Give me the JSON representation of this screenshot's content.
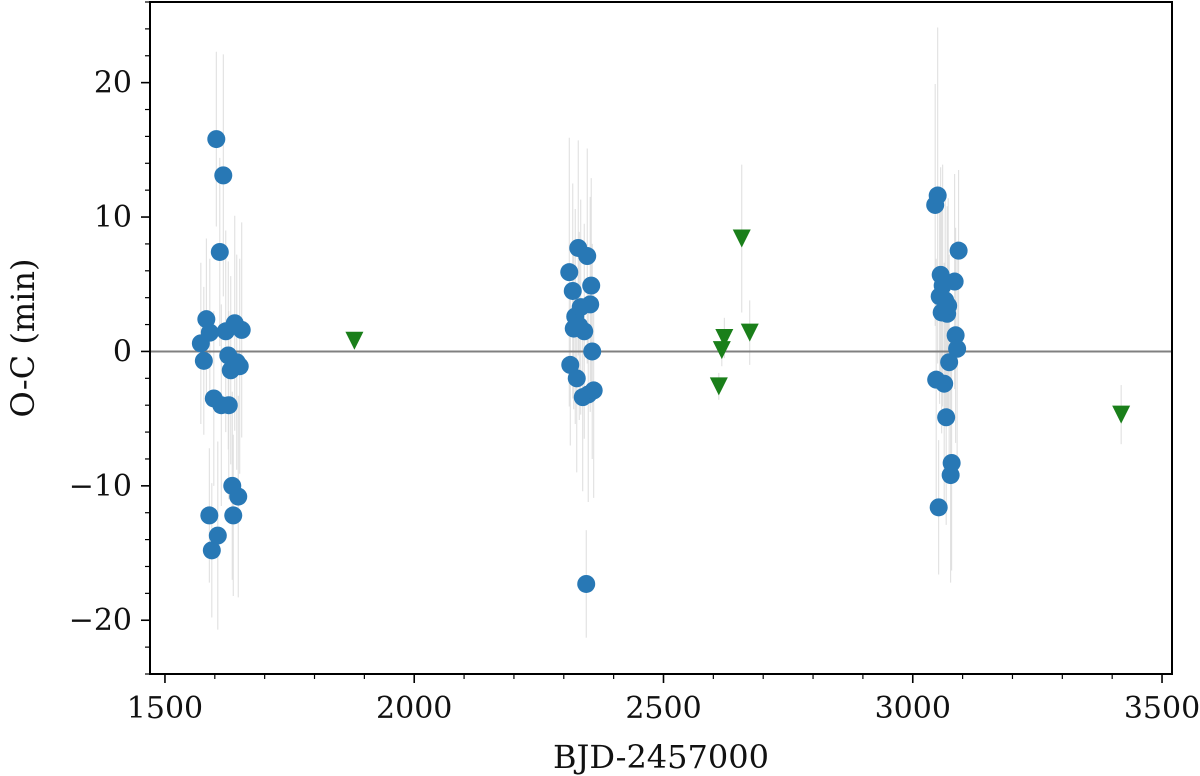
{
  "chart_data": {
    "type": "scatter",
    "title": "",
    "xlabel": "BJD-2457000",
    "ylabel": "O-C (min)",
    "xlim": [
      1470,
      3520
    ],
    "ylim": [
      -24,
      26
    ],
    "x_major_ticks": [
      1500,
      2000,
      2500,
      3000,
      3500
    ],
    "x_minor_step": 100,
    "y_major_ticks": [
      -20,
      -10,
      0,
      10,
      20
    ],
    "y_minor_step": 2,
    "x_tick_labels": [
      "1500",
      "2000",
      "2500",
      "3000",
      "3500"
    ],
    "y_tick_labels": [
      "−20",
      "−10",
      "0",
      "10",
      "20"
    ],
    "reference_line_y": 0,
    "reference_line_color": "#808080",
    "grid": false,
    "series": [
      {
        "marker": "circle",
        "color": "#2878b5",
        "errorbar_color": "#dddddd",
        "points": [
          {
            "x": 1572,
            "y": 0.6,
            "err": 6.0
          },
          {
            "x": 1578,
            "y": -0.7,
            "err": 5.5
          },
          {
            "x": 1583,
            "y": 2.4,
            "err": 6.0
          },
          {
            "x": 1590,
            "y": 1.4,
            "err": 5.5
          },
          {
            "x": 1589,
            "y": -12.2,
            "err": 5.0
          },
          {
            "x": 1594,
            "y": -14.8,
            "err": 5.0
          },
          {
            "x": 1598,
            "y": -3.5,
            "err": 6.5
          },
          {
            "x": 1603,
            "y": 15.8,
            "err": 6.5
          },
          {
            "x": 1606,
            "y": -13.7,
            "err": 7.0
          },
          {
            "x": 1610,
            "y": 7.4,
            "err": 7.0
          },
          {
            "x": 1613,
            "y": -4.0,
            "err": 7.5
          },
          {
            "x": 1617,
            "y": 13.1,
            "err": 9.0
          },
          {
            "x": 1622,
            "y": 1.5,
            "err": 7.5
          },
          {
            "x": 1627,
            "y": -0.3,
            "err": 7.0
          },
          {
            "x": 1628,
            "y": -4.0,
            "err": 7.0
          },
          {
            "x": 1632,
            "y": -1.4,
            "err": 7.0
          },
          {
            "x": 1635,
            "y": -10.0,
            "err": 7.0
          },
          {
            "x": 1637,
            "y": -12.2,
            "err": 6.0
          },
          {
            "x": 1640,
            "y": 2.1,
            "err": 8.0
          },
          {
            "x": 1644,
            "y": -0.8,
            "err": 8.0
          },
          {
            "x": 1647,
            "y": -10.8,
            "err": 7.5
          },
          {
            "x": 1650,
            "y": -1.1,
            "err": 8.0
          },
          {
            "x": 1654,
            "y": 1.6,
            "err": 8.0
          },
          {
            "x": 2311,
            "y": 5.9,
            "err": 10.0
          },
          {
            "x": 2313,
            "y": -1.0,
            "err": 6.0
          },
          {
            "x": 2318,
            "y": 4.5,
            "err": 8.0
          },
          {
            "x": 2320,
            "y": 1.7,
            "err": 6.0
          },
          {
            "x": 2323,
            "y": 2.6,
            "err": 8.0
          },
          {
            "x": 2326,
            "y": -2.0,
            "err": 7.0
          },
          {
            "x": 2329,
            "y": 7.7,
            "err": 8.0
          },
          {
            "x": 2331,
            "y": 1.9,
            "err": 7.0
          },
          {
            "x": 2334,
            "y": 3.3,
            "err": 8.0
          },
          {
            "x": 2338,
            "y": -3.4,
            "err": 7.0
          },
          {
            "x": 2341,
            "y": 1.5,
            "err": 8.0
          },
          {
            "x": 2345,
            "y": -17.3,
            "err": 4.0
          },
          {
            "x": 2347,
            "y": 7.1,
            "err": 8.0
          },
          {
            "x": 2349,
            "y": -3.2,
            "err": 8.0
          },
          {
            "x": 2353,
            "y": 3.5,
            "err": 8.0
          },
          {
            "x": 2355,
            "y": 4.9,
            "err": 8.0
          },
          {
            "x": 2357,
            "y": 0.0,
            "err": 8.0
          },
          {
            "x": 2360,
            "y": -2.9,
            "err": 8.0
          },
          {
            "x": 3045,
            "y": 10.9,
            "err": 9.0
          },
          {
            "x": 3047,
            "y": -2.1,
            "err": 9.0
          },
          {
            "x": 3050,
            "y": 11.6,
            "err": 12.5
          },
          {
            "x": 3052,
            "y": -11.6,
            "err": 5.0
          },
          {
            "x": 3054,
            "y": 4.1,
            "err": 8.0
          },
          {
            "x": 3056,
            "y": 5.7,
            "err": 8.0
          },
          {
            "x": 3058,
            "y": 2.9,
            "err": 9.0
          },
          {
            "x": 3060,
            "y": 4.9,
            "err": 9.0
          },
          {
            "x": 3063,
            "y": -2.4,
            "err": 9.0
          },
          {
            "x": 3065,
            "y": 3.8,
            "err": 8.0
          },
          {
            "x": 3067,
            "y": -4.9,
            "err": 8.0
          },
          {
            "x": 3069,
            "y": 2.8,
            "err": 8.0
          },
          {
            "x": 3071,
            "y": 3.4,
            "err": 8.0
          },
          {
            "x": 3073,
            "y": -0.8,
            "err": 8.0
          },
          {
            "x": 3076,
            "y": -9.2,
            "err": 8.0
          },
          {
            "x": 3078,
            "y": -8.3,
            "err": 8.0
          },
          {
            "x": 3084,
            "y": 5.2,
            "err": 8.0
          },
          {
            "x": 3086,
            "y": 1.2,
            "err": 8.0
          },
          {
            "x": 3089,
            "y": 0.2,
            "err": 8.0
          },
          {
            "x": 3092,
            "y": 7.5,
            "err": 6.0
          }
        ]
      },
      {
        "marker": "triangle-down",
        "color": "#1a7f1a",
        "errorbar_color": "#dddddd",
        "points": [
          {
            "x": 1880,
            "y": 0.8,
            "err": 0.6
          },
          {
            "x": 2611,
            "y": -2.6,
            "err": 1.0
          },
          {
            "x": 2617,
            "y": 0.1,
            "err": 1.2
          },
          {
            "x": 2622,
            "y": 1.0,
            "err": 1.5
          },
          {
            "x": 2657,
            "y": 8.4,
            "err": 5.5
          },
          {
            "x": 2673,
            "y": 1.4,
            "err": 2.4
          },
          {
            "x": 3418,
            "y": -4.7,
            "err": 2.2
          }
        ]
      }
    ]
  }
}
